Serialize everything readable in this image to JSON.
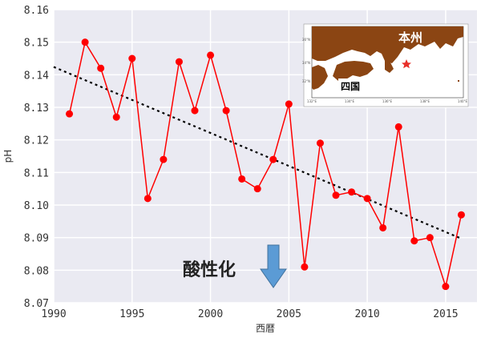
{
  "chart_data": {
    "type": "line",
    "xlabel": "西暦",
    "ylabel": "pH",
    "xlim": [
      1990,
      2017
    ],
    "ylim": [
      8.07,
      8.16
    ],
    "x_ticks": [
      "1990",
      "1995",
      "2000",
      "2005",
      "2010",
      "2015"
    ],
    "y_ticks": [
      "8.07",
      "8.08",
      "8.09",
      "8.10",
      "8.11",
      "8.12",
      "8.13",
      "8.14",
      "8.15",
      "8.16"
    ],
    "grid": true,
    "series": [
      {
        "x": [
          1991,
          1992,
          1993,
          1994,
          1995,
          1996,
          1997,
          1998,
          1999,
          2000,
          2001,
          2002,
          2003,
          2004,
          2005,
          2006,
          2007,
          2008,
          2009,
          2010,
          2011,
          2012,
          2013,
          2014,
          2015,
          2016
        ],
        "values": [
          8.128,
          8.15,
          8.142,
          8.127,
          8.145,
          8.102,
          8.114,
          8.144,
          8.129,
          8.146,
          8.129,
          8.108,
          8.105,
          8.114,
          8.131,
          8.081,
          8.119,
          8.103,
          8.104,
          8.102,
          8.093,
          8.124,
          8.089,
          8.09,
          8.075,
          8.097
        ],
        "color": "#ff0000"
      }
    ],
    "trend": {
      "x": [
        1990,
        2016
      ],
      "values": [
        8.1424,
        8.0897
      ],
      "style": "dotted",
      "color": "#000000"
    },
    "annotations": [
      {
        "text": "酸性化",
        "arrow": "down",
        "arrow_color": "#5b9bd5"
      }
    ]
  },
  "inset_map": {
    "labels": [
      "本州",
      "四国"
    ],
    "x_ticks": [
      "132°E",
      "134°E",
      "136°E",
      "138°E",
      "140°E"
    ],
    "y_ticks": [
      "36°N",
      "34°N",
      "32°N"
    ],
    "land_color": "#8b4513",
    "sea_color": "#ffffff",
    "marker": "star",
    "marker_color": "#e8302a"
  },
  "colors": {
    "plot_bg": "#eaeaf2",
    "grid": "#ffffff",
    "line": "#ff0000",
    "arrow": "#5b9bd5"
  }
}
